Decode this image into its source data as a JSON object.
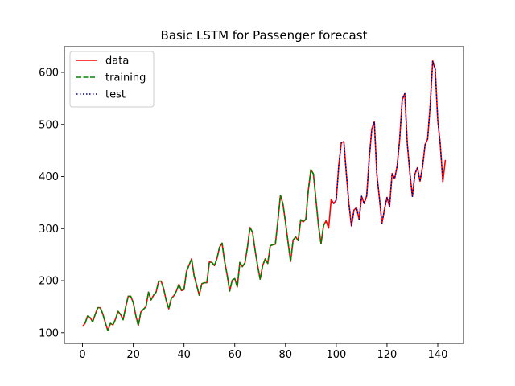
{
  "chart_data": {
    "type": "line",
    "title": "Basic LSTM for Passenger forecast",
    "xlabel": "",
    "ylabel": "",
    "xlim": [
      -7.15,
      150.15
    ],
    "ylim": [
      79.6,
      649.4
    ],
    "xticks": [
      0,
      20,
      40,
      60,
      80,
      100,
      120,
      140
    ],
    "yticks": [
      100,
      200,
      300,
      400,
      500,
      600
    ],
    "grid": false,
    "legend": "top-left",
    "series": [
      {
        "name": "data",
        "color": "#ff0000",
        "style": "solid",
        "x_start": 0,
        "values": [
          112,
          118,
          132,
          129,
          121,
          135,
          148,
          148,
          136,
          119,
          104,
          118,
          115,
          126,
          141,
          135,
          125,
          149,
          170,
          170,
          158,
          133,
          114,
          140,
          145,
          150,
          178,
          163,
          172,
          178,
          199,
          199,
          184,
          162,
          146,
          166,
          171,
          180,
          193,
          181,
          183,
          218,
          230,
          242,
          209,
          191,
          172,
          194,
          196,
          196,
          236,
          235,
          229,
          243,
          264,
          272,
          237,
          211,
          180,
          201,
          204,
          188,
          235,
          227,
          234,
          264,
          302,
          293,
          259,
          229,
          203,
          229,
          242,
          233,
          267,
          269,
          270,
          315,
          364,
          347,
          312,
          274,
          237,
          278,
          284,
          277,
          317,
          313,
          318,
          374,
          413,
          405,
          355,
          306,
          271,
          306,
          315,
          301,
          356,
          348,
          355,
          422,
          465,
          467,
          404,
          347,
          305,
          336,
          340,
          318,
          362,
          348,
          363,
          435,
          491,
          505,
          404,
          359,
          310,
          337,
          360,
          342,
          406,
          396,
          420,
          472,
          548,
          559,
          463,
          407,
          362,
          405,
          417,
          391,
          419,
          461,
          472,
          535,
          622,
          606,
          508,
          461,
          390,
          432
        ]
      },
      {
        "name": "training",
        "color": "#008000",
        "style": "dashed",
        "x_start": 1,
        "values": [
          118,
          132,
          129,
          121,
          135,
          148,
          148,
          136,
          119,
          104,
          118,
          115,
          126,
          141,
          135,
          125,
          149,
          170,
          170,
          158,
          133,
          114,
          140,
          145,
          150,
          178,
          163,
          172,
          178,
          199,
          199,
          184,
          162,
          146,
          166,
          171,
          180,
          193,
          181,
          183,
          218,
          230,
          242,
          209,
          191,
          172,
          194,
          196,
          196,
          236,
          235,
          229,
          243,
          264,
          272,
          237,
          211,
          180,
          201,
          204,
          188,
          235,
          227,
          234,
          264,
          302,
          293,
          259,
          229,
          203,
          229,
          242,
          233,
          267,
          269,
          270,
          315,
          364,
          347,
          312,
          274,
          237,
          278,
          284,
          277,
          317,
          313,
          318,
          374,
          413,
          405,
          355,
          306,
          271,
          306,
          315
        ]
      },
      {
        "name": "test",
        "color": "#00008b",
        "style": "dotted",
        "x_start": 99,
        "values": [
          348,
          355,
          422,
          465,
          467,
          404,
          347,
          305,
          336,
          340,
          318,
          362,
          348,
          363,
          435,
          491,
          505,
          404,
          359,
          310,
          337,
          360,
          342,
          406,
          396,
          420,
          472,
          548,
          559,
          463,
          407,
          362,
          405,
          417,
          391,
          419,
          461,
          472,
          535,
          622,
          606,
          508,
          461,
          390
        ]
      }
    ]
  }
}
